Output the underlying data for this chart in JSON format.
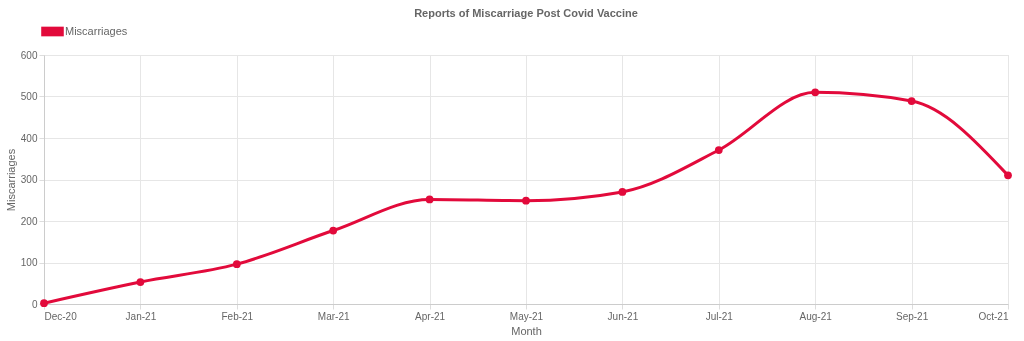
{
  "chart_data": {
    "type": "line",
    "title": "Reports of Miscarriage Post Covid Vaccine",
    "xlabel": "Month",
    "ylabel": "Miscarriages",
    "categories": [
      "Dec-20",
      "Jan-21",
      "Feb-21",
      "Mar-21",
      "Apr-21",
      "May-21",
      "Jun-21",
      "Jul-21",
      "Aug-21",
      "Sep-21",
      "Oct-21"
    ],
    "series": [
      {
        "name": "Miscarriages",
        "color": "#e20a3b",
        "values": [
          2,
          53,
          96,
          177,
          252,
          249,
          270,
          371,
          510,
          489,
          310
        ]
      }
    ],
    "ylim": [
      0,
      600
    ],
    "yticks": [
      0,
      100,
      200,
      300,
      400,
      500,
      600
    ],
    "grid": true,
    "legend": "top",
    "marker": "circle",
    "line_style": "solid"
  }
}
